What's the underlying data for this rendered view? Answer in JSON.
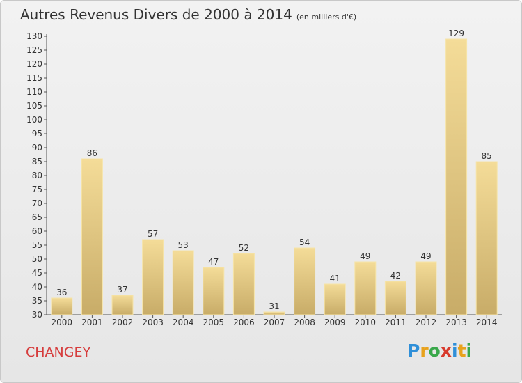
{
  "chart_data": {
    "type": "bar",
    "title": "Autres Revenus Divers de 2000 à 2014",
    "subtitle": "(en milliers d'€)",
    "categories": [
      "2000",
      "2001",
      "2002",
      "2003",
      "2004",
      "2005",
      "2006",
      "2007",
      "2008",
      "2009",
      "2010",
      "2011",
      "2012",
      "2013",
      "2014"
    ],
    "values": [
      36,
      86,
      37,
      57,
      53,
      47,
      52,
      31,
      54,
      41,
      49,
      42,
      49,
      129,
      85
    ],
    "ylim": [
      30,
      130
    ],
    "ytick_step": 5,
    "grid": false,
    "legend": "none",
    "bar_color": "#e8cd82"
  },
  "location": "CHANGEY",
  "logo": {
    "letters": [
      "P",
      "r",
      "o",
      "x",
      "i",
      "t",
      "i"
    ],
    "colors": [
      "#2f8fd8",
      "#e8a21c",
      "#39a84a",
      "#d83a2c",
      "#2f8fd8",
      "#e8a21c",
      "#39a84a"
    ]
  }
}
